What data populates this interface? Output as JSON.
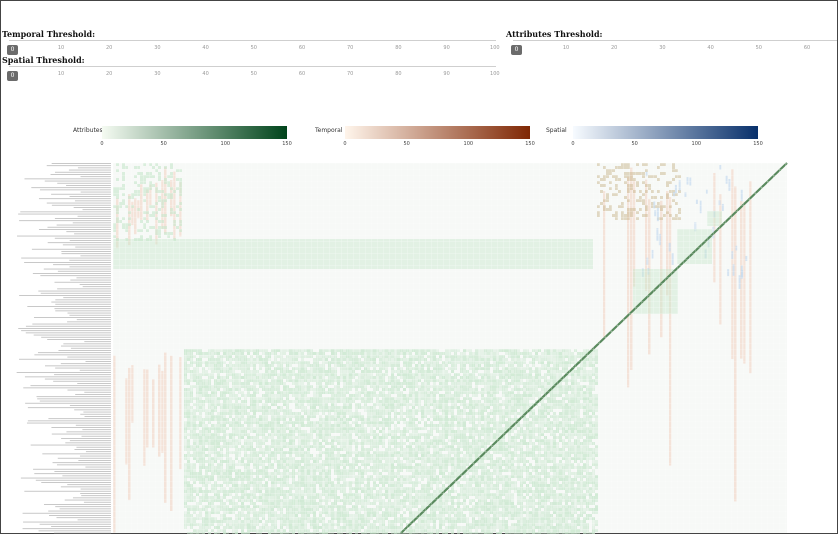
{
  "sliders": {
    "temporal": {
      "label": "Temporal Threshold:",
      "value": "0",
      "ticks": [
        "10",
        "20",
        "30",
        "40",
        "50",
        "60",
        "70",
        "80",
        "90",
        "100"
      ]
    },
    "spatial": {
      "label": "Spatial Threshold:",
      "value": "0",
      "ticks": [
        "10",
        "20",
        "30",
        "40",
        "50",
        "60",
        "70",
        "80",
        "90",
        "100"
      ]
    },
    "attributes": {
      "label": "Attributes Threshold:",
      "value": "0",
      "ticks": [
        "10",
        "20",
        "30",
        "40",
        "50",
        "60"
      ]
    }
  },
  "legends": {
    "attributes": {
      "title": "Attributes",
      "ticks": [
        "0",
        "50",
        "100",
        "150"
      ],
      "color_low": "#f5fbf2",
      "color_high": "#00441b"
    },
    "temporal": {
      "title": "Temporal",
      "ticks": [
        "0",
        "50",
        "100",
        "150"
      ],
      "color_low": "#fff5eb",
      "color_high": "#7f2704"
    },
    "spatial": {
      "title": "Spatial",
      "ticks": [
        "0",
        "50",
        "100",
        "150"
      ],
      "color_low": "#f7fbff",
      "color_high": "#08306b"
    }
  },
  "matrix": {
    "colors": {
      "attributes": "#c7e6cc",
      "temporal": "#f3d2c1",
      "spatial": "#c6dbef",
      "diagonal": "#5a8a5e"
    }
  }
}
